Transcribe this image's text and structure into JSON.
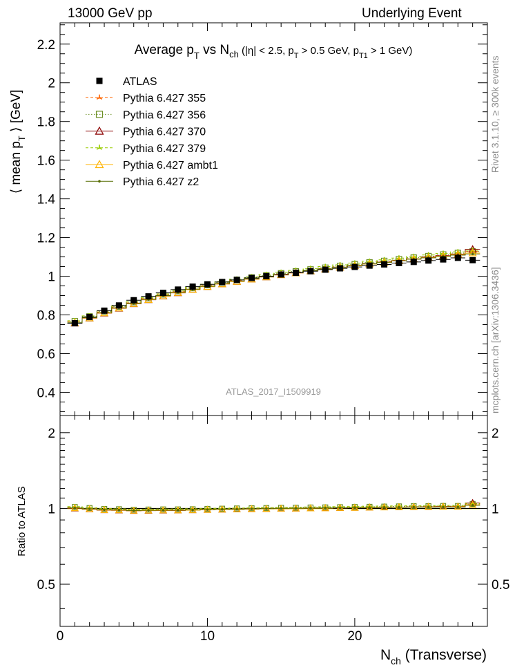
{
  "header": {
    "left": "13000 GeV pp",
    "right": "Underlying Event"
  },
  "side": {
    "top": "Rivet 3.1.10, ≥ 300k events",
    "bottom": "mcplots.cern.ch [arXiv:1306.3436]"
  },
  "chart_data": {
    "type": "scatter",
    "title_parts": {
      "lead": "Average p",
      "sub_t": "T",
      "vs": " vs N",
      "sub_ch": "ch",
      "cut_open": " (|η| < 2.5, p",
      "cut_sub1": "T",
      "cut_mid": " > 0.5 GeV, p",
      "cut_sub2": "T1",
      "cut_close": " > 1 GeV)"
    },
    "ylabel_parts": {
      "open": "⟨ mean p",
      "sub": "T",
      "close": " ⟩ [GeV]"
    },
    "xlabel_parts": {
      "lead": "N",
      "sub": "ch",
      "rest": " (Transverse)"
    },
    "ratio_ylabel": "Ratio to ATLAS",
    "watermark": "ATLAS_2017_I1509919",
    "xlim": [
      0,
      29
    ],
    "ylim": [
      0.28,
      2.31
    ],
    "ratio_ylim": [
      0.34,
      2.34
    ],
    "x_ticks": [
      "0",
      "10",
      "20"
    ],
    "y_ticks": [
      "0.4",
      "0.6",
      "0.8",
      "1",
      "1.2",
      "1.4",
      "1.6",
      "1.8",
      "2",
      "2.2"
    ],
    "ratio_ticks": [
      "0.5",
      "1",
      "2"
    ],
    "legend_position": "top-left",
    "x": [
      1,
      2,
      3,
      4,
      5,
      6,
      7,
      8,
      9,
      10,
      11,
      12,
      13,
      14,
      15,
      16,
      17,
      18,
      19,
      20,
      21,
      22,
      23,
      24,
      25,
      26,
      27,
      28
    ],
    "series": [
      {
        "name": "ATLAS",
        "color": "#000000",
        "marker": "square-filled",
        "line": "none",
        "values": [
          0.757,
          0.789,
          0.822,
          0.849,
          0.876,
          0.896,
          0.914,
          0.931,
          0.946,
          0.958,
          0.97,
          0.981,
          0.991,
          1.0,
          1.009,
          1.018,
          1.026,
          1.034,
          1.041,
          1.048,
          1.055,
          1.061,
          1.068,
          1.074,
          1.081,
          1.087,
          1.095,
          1.083
        ]
      },
      {
        "name": "Pythia 6.427 355",
        "color": "#ff6600",
        "marker": "star",
        "line": "dashed",
        "values": [
          0.765,
          0.789,
          0.815,
          0.841,
          0.863,
          0.885,
          0.903,
          0.92,
          0.937,
          0.951,
          0.965,
          0.978,
          0.99,
          1.0,
          1.011,
          1.021,
          1.03,
          1.04,
          1.049,
          1.057,
          1.066,
          1.075,
          1.083,
          1.091,
          1.1,
          1.107,
          1.116,
          1.129
        ]
      },
      {
        "name": "Pythia 6.427 356",
        "color": "#6b8e23",
        "marker": "square-open",
        "line": "dotted",
        "values": [
          0.767,
          0.792,
          0.818,
          0.843,
          0.866,
          0.887,
          0.906,
          0.923,
          0.939,
          0.954,
          0.968,
          0.981,
          0.993,
          1.004,
          1.015,
          1.025,
          1.035,
          1.044,
          1.053,
          1.062,
          1.071,
          1.079,
          1.088,
          1.096,
          1.104,
          1.112,
          1.12,
          1.128
        ]
      },
      {
        "name": "Pythia 6.427 370",
        "color": "#8b0000",
        "marker": "triangle-open",
        "line": "solid",
        "values": [
          0.757,
          0.783,
          0.809,
          0.834,
          0.857,
          0.878,
          0.897,
          0.914,
          0.931,
          0.946,
          0.96,
          0.973,
          0.985,
          0.996,
          1.007,
          1.017,
          1.027,
          1.037,
          1.046,
          1.055,
          1.064,
          1.073,
          1.081,
          1.089,
          1.098,
          1.106,
          1.114,
          1.139
        ]
      },
      {
        "name": "Pythia 6.427 379",
        "color": "#99cc00",
        "marker": "star",
        "line": "dashed",
        "values": [
          0.77,
          0.795,
          0.821,
          0.846,
          0.869,
          0.89,
          0.909,
          0.927,
          0.943,
          0.958,
          0.972,
          0.985,
          0.997,
          1.009,
          1.02,
          1.03,
          1.04,
          1.05,
          1.059,
          1.068,
          1.077,
          1.085,
          1.094,
          1.102,
          1.11,
          1.118,
          1.126,
          1.134
        ]
      },
      {
        "name": "Pythia 6.427 ambt1",
        "color": "#ffb300",
        "marker": "triangle-open",
        "line": "solid",
        "values": [
          0.759,
          0.784,
          0.81,
          0.835,
          0.858,
          0.879,
          0.898,
          0.915,
          0.931,
          0.946,
          0.96,
          0.973,
          0.985,
          0.996,
          1.007,
          1.017,
          1.027,
          1.036,
          1.046,
          1.054,
          1.063,
          1.071,
          1.08,
          1.088,
          1.096,
          1.104,
          1.112,
          1.12
        ]
      },
      {
        "name": "Pythia 6.427 z2",
        "color": "#556b00",
        "marker": "dot",
        "line": "solid",
        "values": [
          0.76,
          0.786,
          0.812,
          0.837,
          0.86,
          0.881,
          0.9,
          0.917,
          0.933,
          0.948,
          0.962,
          0.975,
          0.987,
          0.998,
          1.009,
          1.019,
          1.029,
          1.038,
          1.047,
          1.056,
          1.064,
          1.072,
          1.08,
          1.088,
          1.095,
          1.102,
          1.109,
          1.115
        ]
      }
    ]
  }
}
